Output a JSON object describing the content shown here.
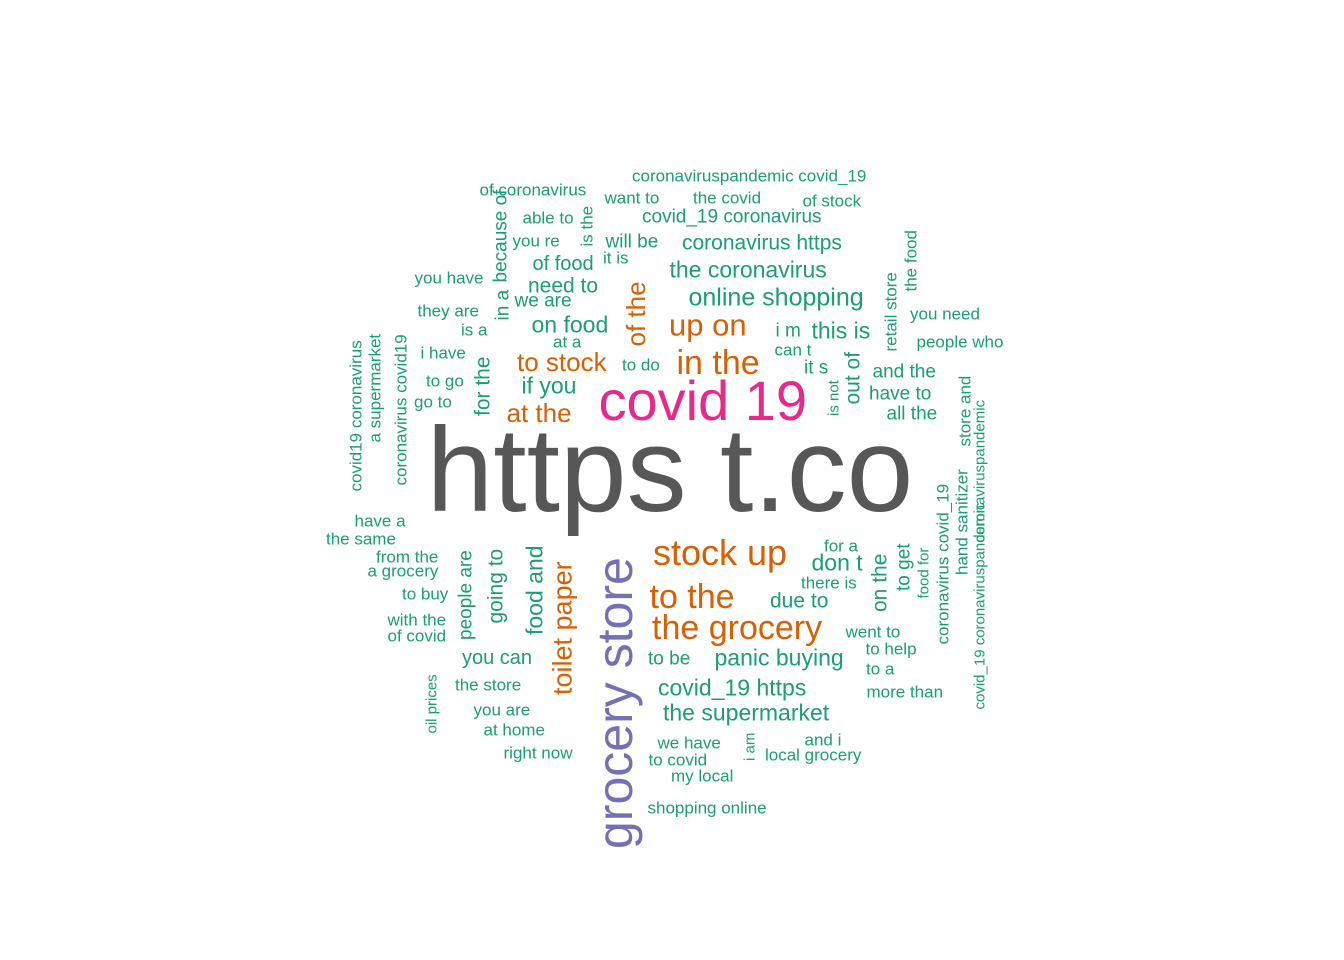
{
  "colors": {
    "level1": "#575757",
    "level2": "#E7298A",
    "level3": "#7570B3",
    "level4": "#D95F02",
    "level5": "#1B9E77"
  },
  "words": [
    {
      "text": "https t.co",
      "color": "level1"
    },
    {
      "text": "covid 19",
      "color": "level2"
    },
    {
      "text": "grocery store",
      "color": "level3"
    },
    {
      "text": "stock up",
      "color": "level4"
    },
    {
      "text": "the grocery",
      "color": "level4"
    },
    {
      "text": "to the",
      "color": "level4"
    },
    {
      "text": "in the",
      "color": "level4"
    },
    {
      "text": "up on",
      "color": "level4"
    },
    {
      "text": "of the",
      "color": "level4"
    },
    {
      "text": "toilet paper",
      "color": "level4"
    },
    {
      "text": "to stock",
      "color": "level4"
    },
    {
      "text": "at the",
      "color": "level4"
    },
    {
      "text": "coronaviruspandemic covid_19",
      "color": "level5"
    },
    {
      "text": "of coronavirus",
      "color": "level5"
    },
    {
      "text": "want to",
      "color": "level5"
    },
    {
      "text": "the covid",
      "color": "level5"
    },
    {
      "text": "of stock",
      "color": "level5"
    },
    {
      "text": "able to",
      "color": "level5"
    },
    {
      "text": "covid_19 coronavirus",
      "color": "level5"
    },
    {
      "text": "is the",
      "color": "level5"
    },
    {
      "text": "because of",
      "color": "level5"
    },
    {
      "text": "you re",
      "color": "level5"
    },
    {
      "text": "will be",
      "color": "level5"
    },
    {
      "text": "coronavirus https",
      "color": "level5"
    },
    {
      "text": "the food",
      "color": "level5"
    },
    {
      "text": "it is",
      "color": "level5"
    },
    {
      "text": "in a",
      "color": "level5"
    },
    {
      "text": "of food",
      "color": "level5"
    },
    {
      "text": "the coronavirus",
      "color": "level5"
    },
    {
      "text": "you have",
      "color": "level5"
    },
    {
      "text": "need to",
      "color": "level5"
    },
    {
      "text": "retail store",
      "color": "level5"
    },
    {
      "text": "online shopping",
      "color": "level5"
    },
    {
      "text": "we are",
      "color": "level5"
    },
    {
      "text": "they are",
      "color": "level5"
    },
    {
      "text": "you need",
      "color": "level5"
    },
    {
      "text": "is a",
      "color": "level5"
    },
    {
      "text": "on food",
      "color": "level5"
    },
    {
      "text": "i m",
      "color": "level5"
    },
    {
      "text": "this is",
      "color": "level5"
    },
    {
      "text": "covid19 coronavirus",
      "color": "level5"
    },
    {
      "text": "a supermarket",
      "color": "level5"
    },
    {
      "text": "coronavirus covid19",
      "color": "level5"
    },
    {
      "text": "at a",
      "color": "level5"
    },
    {
      "text": "people who",
      "color": "level5"
    },
    {
      "text": "can t",
      "color": "level5"
    },
    {
      "text": "i have",
      "color": "level5"
    },
    {
      "text": "for the",
      "color": "level5"
    },
    {
      "text": "to do",
      "color": "level5"
    },
    {
      "text": "out of",
      "color": "level5"
    },
    {
      "text": "it s",
      "color": "level5"
    },
    {
      "text": "and the",
      "color": "level5"
    },
    {
      "text": "to go",
      "color": "level5"
    },
    {
      "text": "if you",
      "color": "level5"
    },
    {
      "text": "is not",
      "color": "level5"
    },
    {
      "text": "have to",
      "color": "level5"
    },
    {
      "text": "store and",
      "color": "level5"
    },
    {
      "text": "go to",
      "color": "level5"
    },
    {
      "text": "all the",
      "color": "level5"
    },
    {
      "text": "coronaviruspandemic",
      "color": "level5"
    },
    {
      "text": "coronavirus covid_19",
      "color": "level5"
    },
    {
      "text": "hand sanitizer",
      "color": "level5"
    },
    {
      "text": "have a",
      "color": "level5"
    },
    {
      "text": "the same",
      "color": "level5"
    },
    {
      "text": "for a",
      "color": "level5"
    },
    {
      "text": "from the",
      "color": "level5"
    },
    {
      "text": "people are",
      "color": "level5"
    },
    {
      "text": "going to",
      "color": "level5"
    },
    {
      "text": "food and",
      "color": "level5"
    },
    {
      "text": "don t",
      "color": "level5"
    },
    {
      "text": "to get",
      "color": "level5"
    },
    {
      "text": "a grocery",
      "color": "level5"
    },
    {
      "text": "there is",
      "color": "level5"
    },
    {
      "text": "on the",
      "color": "level5"
    },
    {
      "text": "food for",
      "color": "level5"
    },
    {
      "text": "to buy",
      "color": "level5"
    },
    {
      "text": "due to",
      "color": "level5"
    },
    {
      "text": "covid_19 coronaviruspandemic",
      "color": "level5"
    },
    {
      "text": "with the",
      "color": "level5"
    },
    {
      "text": "of covid",
      "color": "level5"
    },
    {
      "text": "went to",
      "color": "level5"
    },
    {
      "text": "to help",
      "color": "level5"
    },
    {
      "text": "you can",
      "color": "level5"
    },
    {
      "text": "to be",
      "color": "level5"
    },
    {
      "text": "panic buying",
      "color": "level5"
    },
    {
      "text": "to a",
      "color": "level5"
    },
    {
      "text": "oil prices",
      "color": "level5"
    },
    {
      "text": "the store",
      "color": "level5"
    },
    {
      "text": "covid_19 https",
      "color": "level5"
    },
    {
      "text": "more than",
      "color": "level5"
    },
    {
      "text": "you are",
      "color": "level5"
    },
    {
      "text": "the supermarket",
      "color": "level5"
    },
    {
      "text": "at home",
      "color": "level5"
    },
    {
      "text": "i am",
      "color": "level5"
    },
    {
      "text": "we have",
      "color": "level5"
    },
    {
      "text": "and i",
      "color": "level5"
    },
    {
      "text": "right now",
      "color": "level5"
    },
    {
      "text": "local grocery",
      "color": "level5"
    },
    {
      "text": "to covid",
      "color": "level5"
    },
    {
      "text": "my local",
      "color": "level5"
    },
    {
      "text": "shopping online",
      "color": "level5"
    }
  ]
}
